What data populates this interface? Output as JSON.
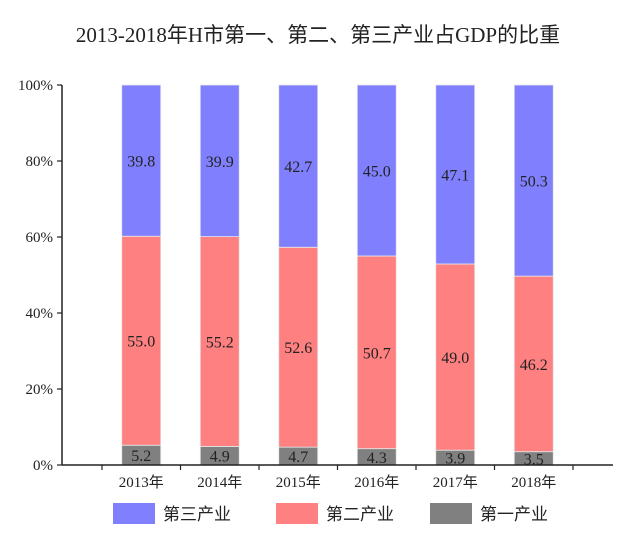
{
  "chart_data": {
    "type": "bar",
    "stacked": true,
    "title": "2013-2018年H市第一、第二、第三产业占GDP的比重",
    "xlabel": "",
    "ylabel": "",
    "categories": [
      "2013年",
      "2014年",
      "2015年",
      "2016年",
      "2017年",
      "2018年"
    ],
    "ylim": [
      0,
      100
    ],
    "yticks": [
      "0%",
      "20%",
      "40%",
      "60%",
      "80%",
      "100%"
    ],
    "grid": false,
    "legend_placement": "bottom",
    "series": [
      {
        "name": "第一产业",
        "color": "#808080",
        "values": [
          5.2,
          4.9,
          4.7,
          4.3,
          3.9,
          3.5
        ]
      },
      {
        "name": "第二产业",
        "color": "#ff8080",
        "values": [
          55.0,
          55.2,
          52.6,
          50.7,
          49.0,
          46.2
        ]
      },
      {
        "name": "第三产业",
        "color": "#8080ff",
        "values": [
          39.8,
          39.9,
          42.7,
          45.0,
          47.1,
          50.3
        ]
      }
    ],
    "legend_order": [
      "第三产业",
      "第二产业",
      "第一产业"
    ]
  }
}
